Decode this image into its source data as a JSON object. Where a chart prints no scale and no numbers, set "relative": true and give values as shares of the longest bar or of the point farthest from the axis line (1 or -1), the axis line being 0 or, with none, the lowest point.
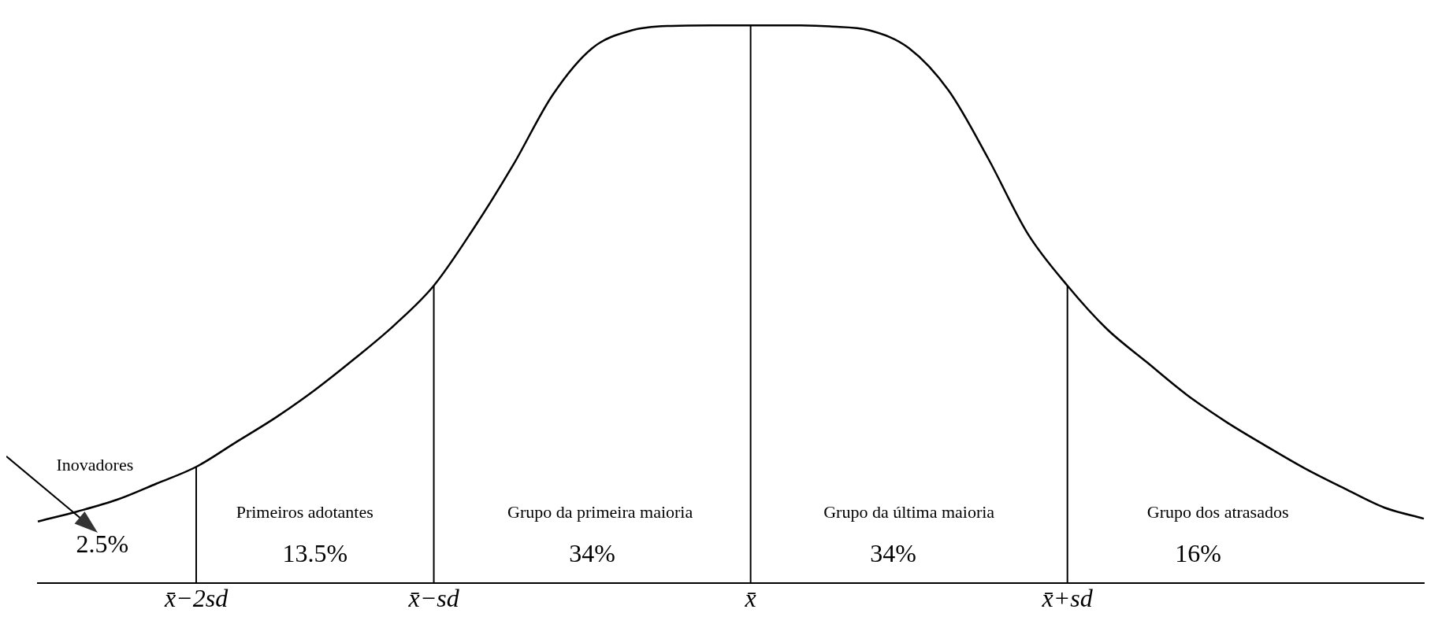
{
  "chart_data": {
    "type": "line",
    "relative": true,
    "categories": [
      null,
      null,
      null,
      null,
      "x̄−2sd",
      null,
      null,
      null,
      null,
      null,
      "x̄−sd",
      null,
      null,
      null,
      null,
      null,
      null,
      null,
      "x̄",
      null,
      null,
      null,
      null,
      null,
      null,
      null,
      "x̄+sd",
      null,
      null,
      null,
      null,
      null,
      null,
      null,
      null,
      null
    ],
    "series": [
      {
        "color": "#000000",
        "values": [
          0.11,
          0.128,
          0.149,
          0.178,
          0.208,
          0.252,
          0.296,
          0.346,
          0.402,
          0.462,
          0.533,
          0.635,
          0.749,
          0.875,
          0.959,
          0.991,
          0.999,
          1,
          1,
          1,
          0.998,
          0.991,
          0.959,
          0.883,
          0.761,
          0.626,
          0.533,
          0.455,
          0.396,
          0.338,
          0.289,
          0.246,
          0.205,
          0.169,
          0.135,
          0.115
        ]
      }
    ],
    "ref_lines": [
      {
        "axis": "x",
        "value": "x̄−2sd"
      },
      {
        "axis": "x",
        "value": "x̄−sd"
      },
      {
        "axis": "x",
        "value": "x̄"
      },
      {
        "axis": "x",
        "value": "x̄+sd"
      }
    ],
    "annotations": [
      "Inovadores",
      "2.5%",
      "Primeiros adotantes",
      "13.5%",
      "Grupo da primeira maioria",
      "34%",
      "Grupo da última maioria",
      "34%",
      "Grupo dos atrasados",
      "16%"
    ]
  }
}
